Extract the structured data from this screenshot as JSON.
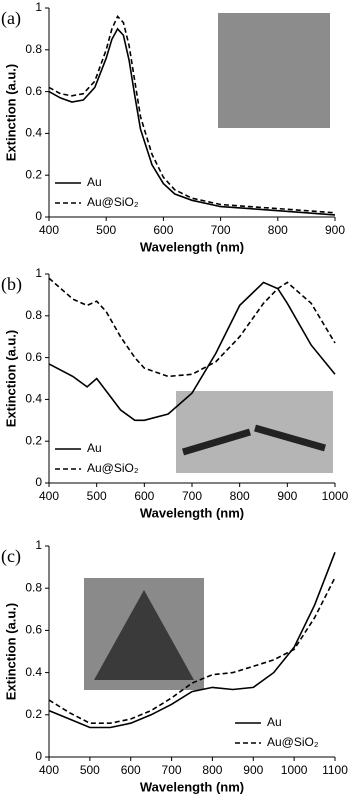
{
  "chart_data": [
    {
      "type": "line",
      "label": "(a)",
      "xlabel": "Wavelength (nm)",
      "ylabel": "Extinction (a.u.)",
      "x": [
        400,
        420,
        440,
        460,
        480,
        500,
        510,
        520,
        530,
        540,
        550,
        560,
        580,
        600,
        620,
        650,
        700,
        750,
        800,
        850,
        900
      ],
      "series": [
        {
          "name": "Au",
          "color": "#000000",
          "linestyle": "solid",
          "values": [
            0.6,
            0.57,
            0.55,
            0.56,
            0.62,
            0.76,
            0.85,
            0.9,
            0.87,
            0.75,
            0.58,
            0.42,
            0.25,
            0.16,
            0.11,
            0.08,
            0.05,
            0.04,
            0.03,
            0.02,
            0.01
          ]
        },
        {
          "name": "Au@SiO₂",
          "color": "#000000",
          "linestyle": "dashed",
          "values": [
            0.62,
            0.59,
            0.58,
            0.59,
            0.65,
            0.8,
            0.9,
            0.96,
            0.93,
            0.82,
            0.65,
            0.48,
            0.3,
            0.19,
            0.13,
            0.09,
            0.06,
            0.05,
            0.04,
            0.03,
            0.02
          ]
        }
      ],
      "xlim": [
        400,
        900
      ],
      "xticks": [
        400,
        500,
        600,
        700,
        800,
        900
      ],
      "ylim": [
        0,
        1
      ],
      "yticks": [
        0,
        0.2,
        0.4,
        0.6,
        0.8,
        1
      ],
      "legend": "lower left"
    },
    {
      "type": "line",
      "label": "(b)",
      "xlabel": "Wavelength (nm)",
      "ylabel": "Extinction (a.u.)",
      "x": [
        400,
        450,
        480,
        500,
        520,
        550,
        580,
        600,
        650,
        700,
        750,
        800,
        850,
        880,
        900,
        950,
        1000
      ],
      "series": [
        {
          "name": "Au",
          "color": "#000000",
          "linestyle": "solid",
          "values": [
            0.57,
            0.51,
            0.46,
            0.5,
            0.44,
            0.35,
            0.3,
            0.3,
            0.33,
            0.43,
            0.62,
            0.85,
            0.96,
            0.93,
            0.86,
            0.66,
            0.52
          ]
        },
        {
          "name": "Au@SiO₂",
          "color": "#000000",
          "linestyle": "dashed",
          "values": [
            0.98,
            0.88,
            0.85,
            0.87,
            0.82,
            0.7,
            0.6,
            0.55,
            0.51,
            0.52,
            0.58,
            0.7,
            0.86,
            0.93,
            0.96,
            0.86,
            0.67
          ]
        }
      ],
      "xlim": [
        400,
        1000
      ],
      "xticks": [
        400,
        500,
        600,
        700,
        800,
        900,
        1000
      ],
      "ylim": [
        0,
        1
      ],
      "yticks": [
        0,
        0.2,
        0.4,
        0.6,
        0.8,
        1
      ],
      "legend": "lower left"
    },
    {
      "type": "line",
      "label": "(c)",
      "xlabel": "Wavelength (nm)",
      "ylabel": "Extinction (a.u.)",
      "x": [
        400,
        450,
        500,
        550,
        600,
        650,
        700,
        750,
        800,
        850,
        900,
        950,
        1000,
        1050,
        1100
      ],
      "series": [
        {
          "name": "Au",
          "color": "#000000",
          "linestyle": "solid",
          "values": [
            0.22,
            0.18,
            0.14,
            0.14,
            0.16,
            0.2,
            0.25,
            0.31,
            0.33,
            0.32,
            0.33,
            0.4,
            0.52,
            0.72,
            0.97
          ]
        },
        {
          "name": "Au@SiO₂",
          "color": "#000000",
          "linestyle": "dashed",
          "values": [
            0.27,
            0.21,
            0.16,
            0.16,
            0.18,
            0.22,
            0.28,
            0.35,
            0.39,
            0.4,
            0.43,
            0.46,
            0.51,
            0.66,
            0.85
          ]
        }
      ],
      "xlim": [
        400,
        1100
      ],
      "xticks": [
        400,
        500,
        600,
        700,
        800,
        900,
        1000,
        1100
      ],
      "ylim": [
        0,
        1
      ],
      "yticks": [
        0,
        0.2,
        0.4,
        0.6,
        0.8,
        1
      ],
      "legend": "lower right"
    }
  ]
}
